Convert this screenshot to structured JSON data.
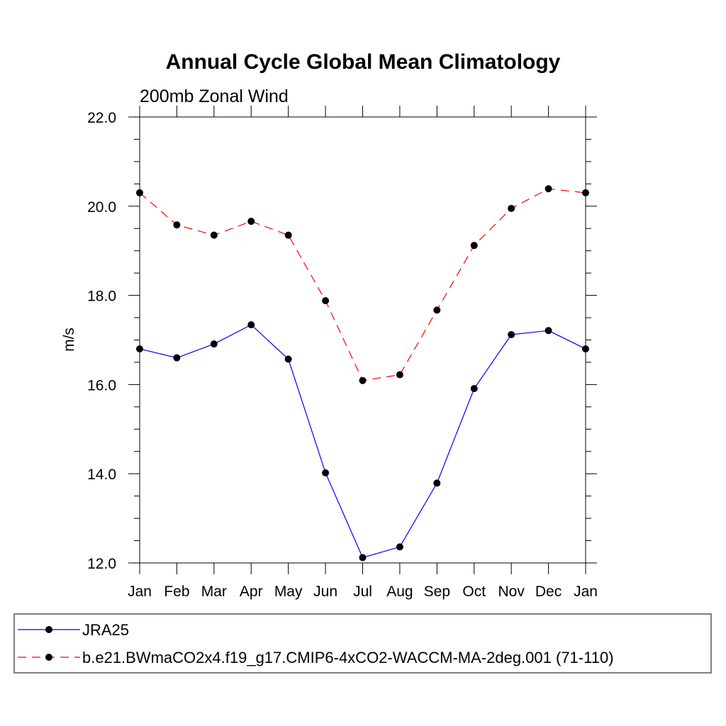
{
  "chart_data": {
    "type": "line",
    "title": "Annual Cycle Global Mean Climatology",
    "subtitle": "200mb Zonal Wind",
    "ylabel": "m/s",
    "xlabel": "",
    "categories": [
      "Jan",
      "Feb",
      "Mar",
      "Apr",
      "May",
      "Jun",
      "Jul",
      "Aug",
      "Sep",
      "Oct",
      "Nov",
      "Dec",
      "Jan"
    ],
    "ylim": [
      12.0,
      22.0
    ],
    "yticks": [
      12.0,
      14.0,
      16.0,
      18.0,
      20.0,
      22.0
    ],
    "ytick_labels": [
      "12.0",
      "14.0",
      "16.0",
      "18.0",
      "20.0",
      "22.0"
    ],
    "series": [
      {
        "name": "JRA25",
        "color": "#0000ff",
        "dash": "solid",
        "marker": "filled-circle",
        "values": [
          16.8,
          16.6,
          16.91,
          17.34,
          16.57,
          14.02,
          12.12,
          12.36,
          13.79,
          15.91,
          17.12,
          17.21,
          16.8
        ]
      },
      {
        "name": "b.e21.BWmaCO2x4.f19_g17.CMIP6-4xCO2-WACCM-MA-2deg.001 (71-110)",
        "color": "#ff0000",
        "dash": "dashed",
        "marker": "filled-circle",
        "values": [
          20.3,
          19.58,
          19.35,
          19.66,
          19.35,
          17.88,
          16.09,
          16.22,
          17.67,
          19.12,
          19.95,
          20.39,
          20.3
        ]
      }
    ],
    "legend": "bottom",
    "grid": false
  }
}
